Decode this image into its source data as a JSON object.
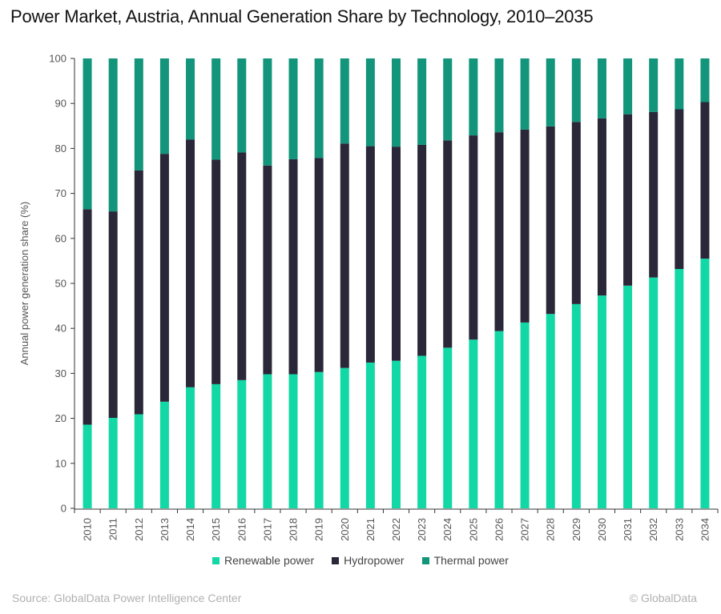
{
  "chart_data": {
    "type": "bar",
    "stacked": true,
    "title": "Power Market, Austria, Annual Generation Share by Technology, 2010–2035",
    "xlabel": "",
    "ylabel": "Annual power generation share (%)",
    "ylim": [
      0,
      100
    ],
    "yticks": [
      0,
      10,
      20,
      30,
      40,
      50,
      60,
      70,
      80,
      90,
      100
    ],
    "grid": false,
    "legend_position": "bottom",
    "categories": [
      "2010",
      "2011",
      "2012",
      "2013",
      "2014",
      "2015",
      "2016",
      "2017",
      "2018",
      "2019",
      "2020",
      "2021",
      "2022",
      "2023",
      "2024",
      "2025",
      "2026",
      "2027",
      "2028",
      "2029",
      "2030",
      "2031",
      "2032",
      "2033",
      "2034"
    ],
    "series": [
      {
        "name": "Renewable power",
        "color": "#12D8A5",
        "values": [
          18.6,
          20.1,
          20.9,
          23.7,
          26.9,
          27.6,
          28.5,
          29.8,
          29.8,
          30.3,
          31.2,
          32.4,
          32.8,
          33.9,
          35.7,
          37.5,
          39.4,
          41.3,
          43.2,
          45.4,
          47.3,
          49.5,
          51.3,
          53.2,
          55.5
        ]
      },
      {
        "name": "Hydropower",
        "color": "#2A2838",
        "values": [
          47.9,
          45.9,
          54.2,
          55.1,
          55.1,
          49.9,
          50.6,
          46.4,
          47.8,
          47.6,
          49.9,
          48.1,
          47.6,
          46.9,
          46.1,
          45.4,
          44.2,
          42.9,
          41.7,
          40.5,
          39.4,
          38.1,
          36.8,
          35.5,
          34.8
        ]
      },
      {
        "name": "Thermal power",
        "color": "#12957A",
        "values": [
          33.5,
          34.0,
          24.9,
          21.2,
          18.0,
          22.5,
          20.9,
          23.8,
          22.4,
          22.1,
          18.9,
          19.5,
          19.6,
          19.2,
          18.2,
          17.1,
          16.4,
          15.8,
          15.1,
          14.1,
          13.3,
          12.4,
          11.9,
          11.3,
          9.7
        ]
      }
    ]
  },
  "footer": {
    "source": "Source: GlobalData Power Intelligence Center",
    "copyright": "© GlobalData"
  }
}
